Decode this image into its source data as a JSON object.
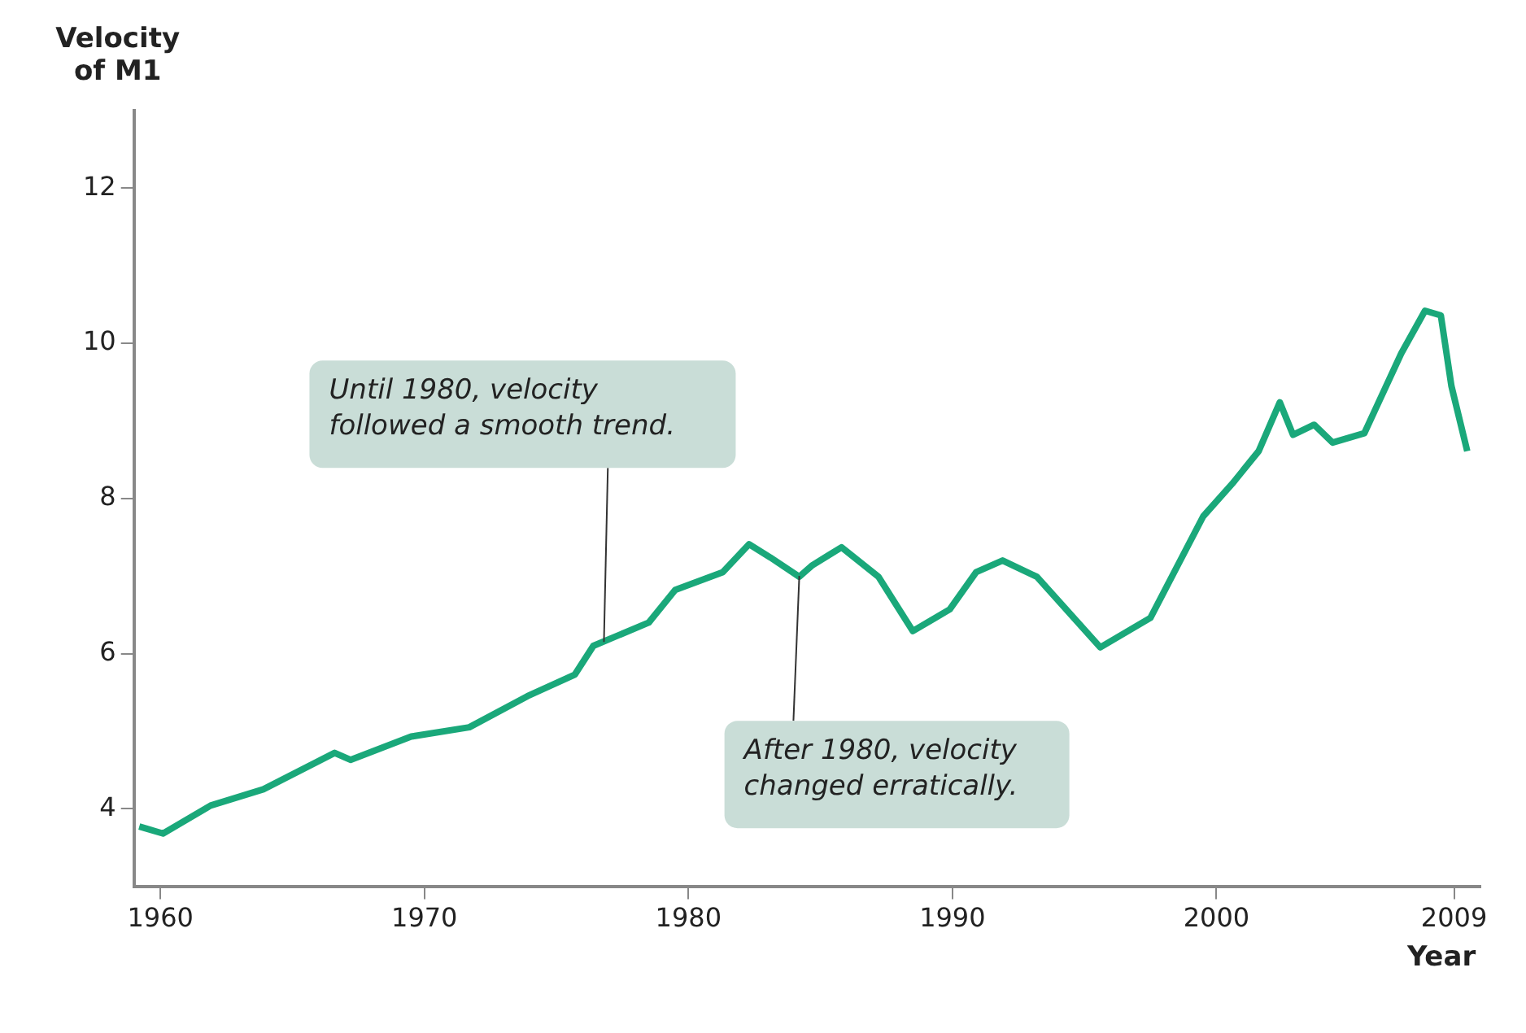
{
  "chart_data": {
    "type": "line",
    "xlabel": "Year",
    "ylabel": "Velocity of M1",
    "x": [
      1959.2,
      1960.1,
      1961.9,
      1963.9,
      1966.6,
      1967.2,
      1969.5,
      1971.7,
      1973.9,
      1975.7,
      1976.4,
      1978.5,
      1979.5,
      1981.3,
      1982.3,
      1983.1,
      1984.2,
      1984.7,
      1985.8,
      1987.2,
      1988.5,
      1989.9,
      1990.9,
      1991.9,
      1993.2,
      1995.6,
      1997.5,
      1999.5,
      2000.6,
      2001.6,
      2002.4,
      2002.9,
      2003.7,
      2004.4,
      2005.6,
      2007.0,
      2007.9,
      2008.5,
      2008.9,
      2009.5
    ],
    "series": [
      {
        "color": "#1aa87a",
        "values": [
          3.77,
          3.68,
          4.04,
          4.25,
          4.72,
          4.63,
          4.93,
          5.05,
          5.45,
          5.73,
          6.1,
          6.4,
          6.82,
          7.05,
          7.41,
          7.24,
          6.99,
          7.14,
          7.37,
          6.99,
          6.29,
          6.57,
          7.05,
          7.2,
          6.99,
          6.08,
          6.46,
          7.77,
          8.19,
          8.61,
          9.24,
          8.82,
          8.95,
          8.72,
          8.84,
          9.87,
          10.42,
          10.36,
          9.45,
          8.61
        ]
      }
    ],
    "xlim": [
      1959,
      2010
    ],
    "xticks": [
      1960,
      1970,
      1980,
      1990,
      2000,
      2009
    ],
    "ylim": [
      3,
      13
    ],
    "yticks": [
      4,
      6,
      8,
      10,
      12
    ],
    "grid": false,
    "legend": false,
    "annotations": [
      {
        "text": "Until 1980, velocity followed a smooth trend.",
        "x": 1976.8,
        "y": 6.15
      },
      {
        "text": "After 1980, velocity changed erratically.",
        "x": 1984.2,
        "y": 7.0
      }
    ]
  }
}
